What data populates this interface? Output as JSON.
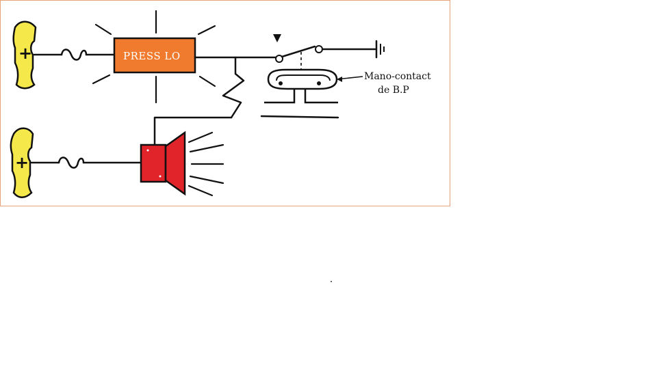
{
  "diagram": {
    "warning_lamp_label": "PRESS LO",
    "sensor_label_line1": "Mano-contact",
    "sensor_label_line2": "de B.P",
    "battery_top_symbol": "+",
    "battery_bottom_symbol": "+",
    "colors": {
      "frame_border": "#e8a27a",
      "battery_fill": "#f5e84a",
      "lamp_fill": "#f07a2e",
      "horn_fill": "#e0242a",
      "ink": "#111111"
    },
    "icons": [
      "battery-terminal-icon",
      "fuse-icon",
      "warning-lamp-icon",
      "relay-coil-icon",
      "switch-contact-icon",
      "ground-icon",
      "pressure-switch-icon",
      "horn-icon"
    ]
  }
}
